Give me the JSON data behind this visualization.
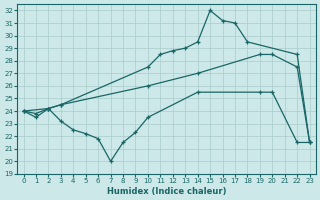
{
  "xlabel": "Humidex (Indice chaleur)",
  "bg_color": "#cce8e8",
  "grid_color": "#aacccc",
  "line_color": "#1a6666",
  "xlim": [
    -0.5,
    23.5
  ],
  "ylim": [
    19,
    32.5
  ],
  "xticks": [
    0,
    1,
    2,
    3,
    4,
    5,
    6,
    7,
    8,
    9,
    10,
    11,
    12,
    13,
    14,
    15,
    16,
    17,
    18,
    19,
    20,
    21,
    22,
    23
  ],
  "yticks": [
    19,
    20,
    21,
    22,
    23,
    24,
    25,
    26,
    27,
    28,
    29,
    30,
    31,
    32
  ],
  "line1_x": [
    0,
    2,
    3,
    10,
    11,
    12,
    13,
    14,
    15,
    16,
    17,
    18,
    22,
    23
  ],
  "line1_y": [
    24.0,
    24.2,
    24.5,
    27.5,
    28.5,
    28.8,
    29.0,
    29.5,
    32.0,
    31.2,
    31.0,
    29.5,
    28.5,
    21.5
  ],
  "line2_x": [
    0,
    1,
    2,
    3,
    10,
    14,
    19,
    20,
    22,
    23
  ],
  "line2_y": [
    24.0,
    23.8,
    24.2,
    24.5,
    26.0,
    27.0,
    28.5,
    28.5,
    27.5,
    21.5
  ],
  "line3_x": [
    0,
    1,
    2,
    3,
    4,
    5,
    6,
    7,
    8,
    9,
    10,
    14,
    19,
    20,
    22,
    23
  ],
  "line3_y": [
    24.0,
    23.5,
    24.2,
    23.2,
    22.5,
    22.2,
    21.8,
    20.0,
    21.5,
    22.3,
    23.5,
    25.5,
    25.5,
    25.5,
    21.5,
    21.5
  ]
}
